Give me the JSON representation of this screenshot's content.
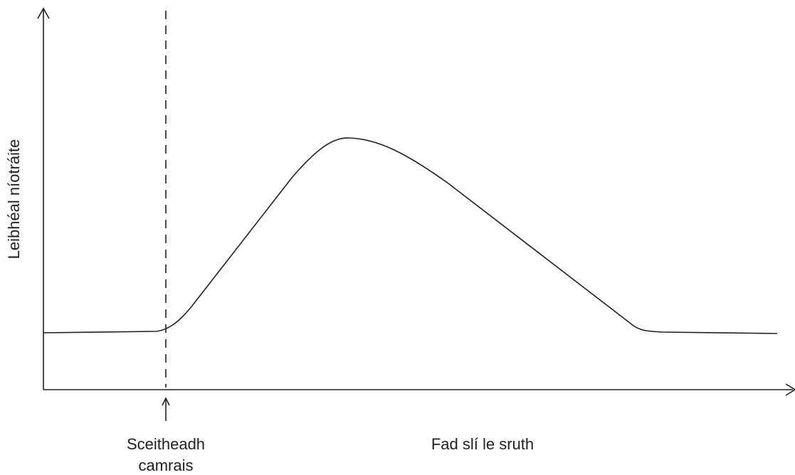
{
  "axes": {
    "y_label": "Leibhéal níotráite",
    "x_label": "Fad slí le sruth"
  },
  "annotation": {
    "lines": [
      "Sceitheadh",
      "camrais"
    ]
  }
}
